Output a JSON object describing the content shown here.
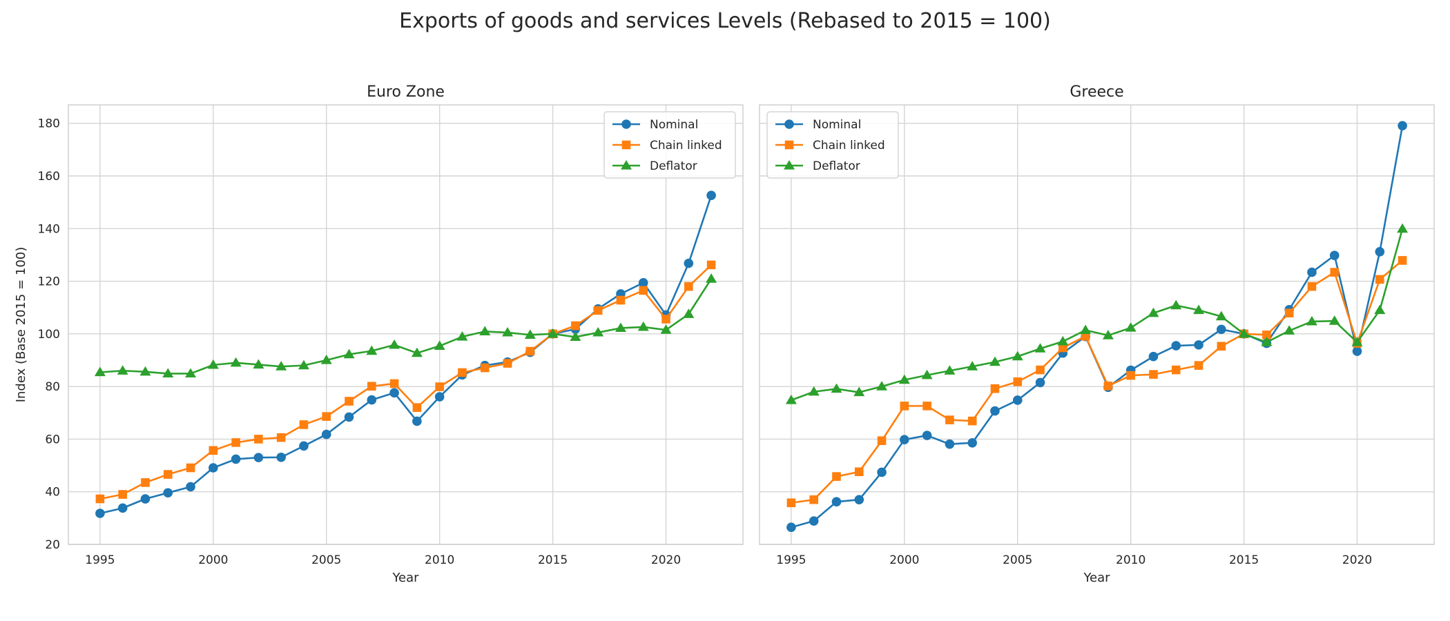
{
  "figure_title": "Exports of goods and services Levels (Rebased to 2015 = 100)",
  "chart_data": [
    {
      "type": "line",
      "title": "Euro Zone",
      "xlabel": "Year",
      "ylabel": "Index (Base 2015 = 100)",
      "xlim": [
        1993.6,
        2023.4
      ],
      "ylim": [
        20,
        187
      ],
      "xticks": [
        1995,
        2000,
        2005,
        2010,
        2015,
        2020
      ],
      "yticks": [
        20,
        40,
        60,
        80,
        100,
        120,
        140,
        160,
        180
      ],
      "grid": true,
      "legend_position": "top-right",
      "x": [
        1995,
        1996,
        1997,
        1998,
        1999,
        2000,
        2001,
        2002,
        2003,
        2004,
        2005,
        2006,
        2007,
        2008,
        2009,
        2010,
        2011,
        2012,
        2013,
        2014,
        2015,
        2016,
        2017,
        2018,
        2019,
        2020,
        2021,
        2022
      ],
      "series": [
        {
          "name": "Nominal",
          "color": "#1f77b4",
          "marker": "circle",
          "values": [
            31.8,
            33.8,
            37.3,
            39.6,
            41.9,
            49.1,
            52.4,
            53.0,
            53.1,
            57.4,
            61.8,
            68.4,
            74.9,
            77.6,
            66.8,
            76.1,
            84.4,
            88.0,
            89.3,
            93.0,
            100.0,
            101.8,
            109.5,
            115.2,
            119.4,
            107.2,
            126.8,
            152.6
          ]
        },
        {
          "name": "Chain linked",
          "color": "#ff7f0e",
          "marker": "square",
          "values": [
            37.3,
            39.0,
            43.5,
            46.6,
            49.1,
            55.7,
            58.7,
            60.0,
            60.6,
            65.5,
            68.6,
            74.4,
            80.1,
            81.1,
            72.0,
            79.9,
            85.3,
            87.1,
            88.8,
            93.4,
            100.0,
            103.1,
            108.9,
            112.8,
            116.5,
            105.6,
            118.0,
            126.2
          ]
        },
        {
          "name": "Deflator",
          "color": "#2ca02c",
          "marker": "triangle",
          "values": [
            85.4,
            86.0,
            85.6,
            84.9,
            84.9,
            88.2,
            89.0,
            88.3,
            87.6,
            88.0,
            90.0,
            92.2,
            93.5,
            95.8,
            92.7,
            95.4,
            98.9,
            100.9,
            100.5,
            99.6,
            100.0,
            98.8,
            100.5,
            102.2,
            102.6,
            101.5,
            107.5,
            120.9
          ]
        }
      ]
    },
    {
      "type": "line",
      "title": "Greece",
      "xlabel": "Year",
      "ylabel": "",
      "xlim": [
        1993.6,
        2023.4
      ],
      "ylim": [
        20,
        187
      ],
      "xticks": [
        1995,
        2000,
        2005,
        2010,
        2015,
        2020
      ],
      "yticks": [
        20,
        40,
        60,
        80,
        100,
        120,
        140,
        160,
        180
      ],
      "grid": true,
      "legend_position": "top-left",
      "x": [
        1995,
        1996,
        1997,
        1998,
        1999,
        2000,
        2001,
        2002,
        2003,
        2004,
        2005,
        2006,
        2007,
        2008,
        2009,
        2010,
        2011,
        2012,
        2013,
        2014,
        2015,
        2016,
        2017,
        2018,
        2019,
        2020,
        2021,
        2022
      ],
      "series": [
        {
          "name": "Nominal",
          "color": "#1f77b4",
          "marker": "circle",
          "values": [
            26.5,
            28.9,
            36.2,
            37.0,
            47.4,
            59.8,
            61.4,
            58.1,
            58.6,
            70.7,
            74.8,
            81.5,
            92.7,
            99.0,
            79.7,
            86.2,
            91.4,
            95.5,
            95.8,
            101.7,
            100.0,
            96.4,
            109.2,
            123.4,
            129.8,
            93.4,
            131.2,
            179.1
          ]
        },
        {
          "name": "Chain linked",
          "color": "#ff7f0e",
          "marker": "square",
          "values": [
            35.8,
            37.0,
            45.8,
            47.6,
            59.4,
            72.6,
            72.6,
            67.3,
            66.9,
            79.2,
            81.8,
            86.3,
            94.7,
            99.1,
            80.2,
            84.2,
            84.6,
            86.3,
            88.0,
            95.3,
            100.0,
            99.6,
            107.9,
            118.0,
            123.4,
            96.4,
            120.7,
            127.9
          ]
        },
        {
          "name": "Deflator",
          "color": "#2ca02c",
          "marker": "triangle",
          "values": [
            74.8,
            78.0,
            79.1,
            77.8,
            80.0,
            82.5,
            84.3,
            86.0,
            87.6,
            89.3,
            91.4,
            94.4,
            97.1,
            101.4,
            99.4,
            102.3,
            107.9,
            110.8,
            109.0,
            106.6,
            100.0,
            96.8,
            101.2,
            104.7,
            104.9,
            96.8,
            109.0,
            139.9
          ]
        }
      ]
    }
  ]
}
